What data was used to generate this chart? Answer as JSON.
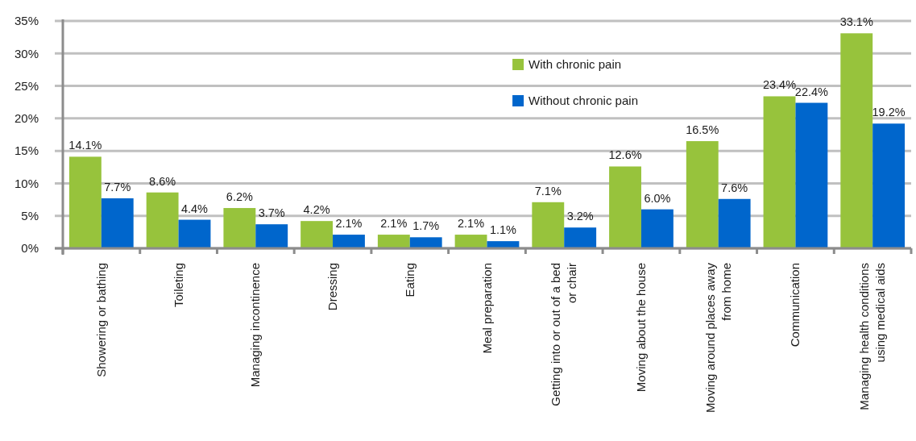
{
  "chart_data": {
    "type": "bar",
    "categories": [
      "Showering or bathing",
      "Toileting",
      "Managing incontinence",
      "Dressing",
      "Eating",
      "Meal preparation",
      "Getting into or out of a bed or chair",
      "Moving about the house",
      "Moving around places away from home",
      "Communication",
      "Managing health conditions using medical aids"
    ],
    "series": [
      {
        "name": "With chronic pain",
        "color": "#97c33c",
        "values": [
          14.1,
          8.6,
          6.2,
          4.2,
          2.1,
          2.1,
          7.1,
          12.6,
          16.5,
          23.4,
          33.1
        ],
        "value_labels": [
          "14.1%",
          "8.6%",
          "6.2%",
          "4.2%",
          "2.1%",
          "2.1%",
          "7.1%",
          "12.6%",
          "16.5%",
          "23.4%",
          "33.1%"
        ]
      },
      {
        "name": "Without chronic pain",
        "color": "#0066cc",
        "values": [
          7.7,
          4.4,
          3.7,
          2.1,
          1.7,
          1.1,
          3.2,
          6.0,
          7.6,
          22.4,
          19.2
        ],
        "value_labels": [
          "7.7%",
          "4.4%",
          "3.7%",
          "2.1%",
          "1.7%",
          "1.1%",
          "3.2%",
          "6.0%",
          "7.6%",
          "22.4%",
          "19.2%"
        ]
      }
    ],
    "ylim": [
      0,
      35
    ],
    "yticks": [
      {
        "value": 0,
        "label": "0%"
      },
      {
        "value": 5,
        "label": "5%"
      },
      {
        "value": 10,
        "label": "10%"
      },
      {
        "value": 15,
        "label": "15%"
      },
      {
        "value": 20,
        "label": "20%"
      },
      {
        "value": 25,
        "label": "25%"
      },
      {
        "value": 30,
        "label": "30%"
      },
      {
        "value": 35,
        "label": "35%"
      }
    ],
    "grid": "y",
    "legend": "top right"
  }
}
